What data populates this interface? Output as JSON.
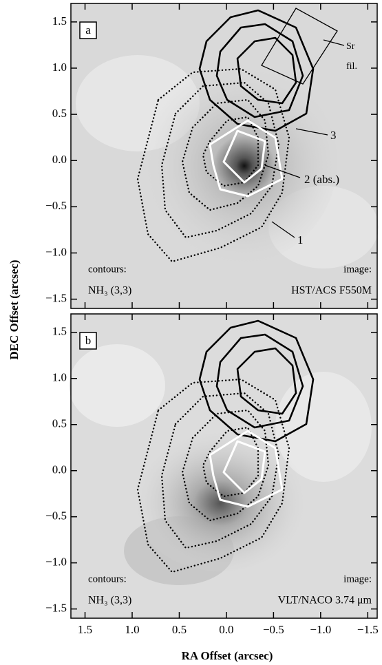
{
  "chart_data": [
    {
      "type": "contour",
      "panel_label": "a",
      "ylabel": "DEC Offset (arcsec)",
      "ylim": [
        -1.6,
        1.7
      ],
      "yticks": [
        1.5,
        {
          "value": 1.0,
          "label": "1.0"
        },
        0.5,
        {
          "value": 0.0,
          "label": "0.0"
        },
        {
          "value": -0.5,
          "label": "−0.5"
        },
        {
          "value": -1.0,
          "label": "−1.0"
        },
        {
          "value": -1.5,
          "label": "−1.5"
        }
      ],
      "annotations": [
        "Sr",
        "fil.",
        "3",
        "2 (abs.)",
        "1"
      ],
      "contours_label": "contours:",
      "contours_species": "NH₃ (3,3)",
      "image_label": "image:",
      "image_source": "HST/ACS F550M"
    },
    {
      "type": "contour",
      "panel_label": "b",
      "xlabel": "RA Offset (arcsec)",
      "xlim": [
        1.65,
        -1.6
      ],
      "xticks": [
        1.5,
        {
          "value": 1.0,
          "label": "1.0"
        },
        0.5,
        {
          "value": 0.0,
          "label": "0.0"
        },
        {
          "value": -0.5,
          "label": "−0.5"
        },
        {
          "value": -1.0,
          "label": "−1.0"
        },
        {
          "value": -1.5,
          "label": "−1.5"
        }
      ],
      "ylim": [
        -1.6,
        1.7
      ],
      "yticks": [
        1.5,
        {
          "value": 1.0,
          "label": "1.0"
        },
        0.5,
        {
          "value": 0.0,
          "label": "0.0"
        },
        {
          "value": -0.5,
          "label": "−0.5"
        },
        {
          "value": -1.0,
          "label": "−1.0"
        },
        {
          "value": -1.5,
          "label": "−1.5"
        }
      ],
      "contours_label": "contours:",
      "contours_species": "NH₃ (3,3)",
      "image_label": "image:",
      "image_source": "VLT/NACO 3.74 μm"
    }
  ]
}
